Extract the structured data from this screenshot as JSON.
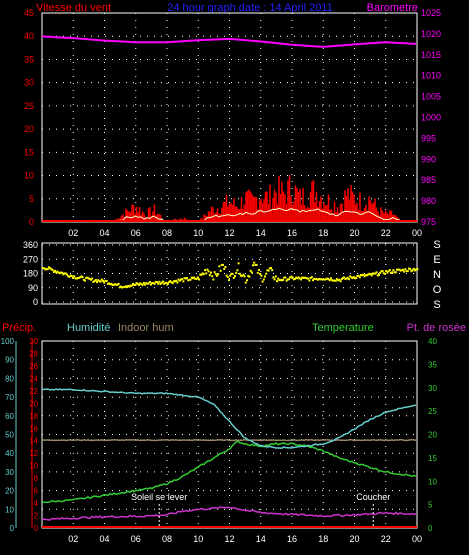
{
  "header": {
    "left_label": "Vitesse du vent",
    "title": "24 hour graph date : 14 April 2011",
    "right_label": "Barometre"
  },
  "colors": {
    "wind_label": "#ff0000",
    "title": "#2222ff",
    "baro_label": "#ff00ff",
    "wind_speed": "#ff0000",
    "wind_avg": "#ffffcc",
    "barometer": "#ff00ff",
    "direction": "#ffff00",
    "humidity": "#66cccc",
    "indoor_hum": "#998866",
    "temperature": "#33cc33",
    "dew_point": "#cc33cc",
    "precip": "#ff0000",
    "grid_dot": "#ffffff"
  },
  "x_ticks": [
    "02",
    "04",
    "06",
    "08",
    "10",
    "12",
    "14",
    "16",
    "18",
    "20",
    "22",
    "00"
  ],
  "chart_data": [
    {
      "type": "line",
      "name": "wind_and_barometer",
      "left_axis": {
        "ticks": [
          "0",
          "5",
          "10",
          "15",
          "20",
          "25",
          "30",
          "35",
          "40",
          "45"
        ],
        "ylim": [
          0,
          45
        ]
      },
      "right_axis": {
        "ticks": [
          "975",
          "980",
          "985",
          "990",
          "995",
          "1000",
          "1005",
          "1010",
          "1015",
          "1020",
          "1025"
        ],
        "ylim": [
          975,
          1025
        ]
      },
      "series": [
        {
          "name": "Barometre",
          "x_hours": [
            0,
            2,
            4,
            6,
            8,
            10,
            12,
            14,
            16,
            18,
            20,
            22,
            24
          ],
          "values": [
            1019.4,
            1019.0,
            1018.4,
            1018.0,
            1018.0,
            1018.5,
            1018.8,
            1018.2,
            1017.4,
            1016.9,
            1017.5,
            1018.0,
            1017.6
          ]
        },
        {
          "name": "Vitesse du vent",
          "x_hours": [
            0,
            3,
            4.5,
            5.2,
            6,
            6.6,
            7.2,
            8,
            9,
            10,
            10.8,
            11.5,
            12,
            12.5,
            13,
            13.5,
            14,
            14.5,
            15,
            15.5,
            16,
            16.5,
            17,
            17.5,
            18,
            18.5,
            19,
            19.5,
            20,
            20.5,
            21,
            21.5,
            22,
            22.5,
            23,
            24
          ],
          "values": [
            0,
            0,
            0,
            2,
            4,
            2,
            3,
            0,
            1,
            0,
            3,
            4,
            5,
            4,
            6,
            5,
            7,
            6,
            8,
            7,
            9,
            6,
            7,
            8,
            6,
            5,
            4,
            7,
            6,
            5,
            6,
            3,
            2,
            2,
            0,
            0
          ]
        }
      ]
    },
    {
      "type": "scatter",
      "name": "wind_direction",
      "axis": {
        "ticks": [
          "0",
          "90",
          "180",
          "270",
          "360"
        ],
        "ylim": [
          0,
          360
        ]
      },
      "side_letters": [
        "S",
        "E",
        "N",
        "O",
        "S"
      ],
      "series": [
        {
          "name": "direction",
          "x_hours": [
            0,
            1,
            2,
            3,
            4,
            5,
            6,
            7,
            8,
            9,
            10,
            10.5,
            11,
            11.5,
            12,
            12.5,
            13,
            13.5,
            14,
            14.5,
            15,
            16,
            17,
            18,
            19,
            20,
            21,
            22,
            23,
            24
          ],
          "values": [
            220,
            190,
            160,
            140,
            130,
            100,
            110,
            120,
            125,
            140,
            150,
            210,
            160,
            230,
            150,
            220,
            140,
            240,
            150,
            200,
            140,
            150,
            145,
            150,
            140,
            160,
            170,
            190,
            200,
            210
          ]
        }
      ]
    },
    {
      "type": "line",
      "name": "humidity_temperature",
      "labels": {
        "precip": "Précip.",
        "humidity": "Humidité",
        "indoor": "Indoor hum",
        "temperature": "Temperature",
        "dew": "Pt. de rosée"
      },
      "axis_humidity": {
        "ticks": [
          "0",
          "10",
          "20",
          "30",
          "40",
          "50",
          "60",
          "70",
          "80",
          "90",
          "100"
        ],
        "ylim": [
          0,
          100
        ]
      },
      "axis_precip": {
        "ticks": [
          "0",
          "2",
          "4",
          "6",
          "8",
          "10",
          "12",
          "14",
          "16",
          "18",
          "20",
          "22",
          "24",
          "26",
          "28",
          "30"
        ],
        "ylim": [
          0,
          30
        ]
      },
      "axis_temperature": {
        "ticks": [
          "0",
          "5",
          "10",
          "15",
          "20",
          "25",
          "30",
          "35",
          "40"
        ],
        "ylim": [
          0,
          40
        ]
      },
      "annotations": {
        "sunrise": "Soleil se lever",
        "sunset": "Coucher",
        "sunrise_hour": 7.5,
        "sunset_hour": 21.2
      },
      "series": [
        {
          "name": "Humidité",
          "x_hours": [
            0,
            2,
            4,
            6,
            8,
            9,
            10,
            11,
            12,
            13,
            14,
            15,
            16,
            17,
            18,
            19,
            20,
            21,
            22,
            23,
            24
          ],
          "values": [
            74,
            74,
            73,
            72,
            72,
            71,
            70,
            66,
            57,
            48,
            44,
            43,
            43,
            44,
            45,
            48,
            53,
            58,
            62,
            64,
            66
          ]
        },
        {
          "name": "Indoor hum",
          "x_hours": [
            0,
            4,
            8,
            12,
            16,
            20,
            24
          ],
          "values": [
            47,
            47,
            47,
            47,
            47,
            47,
            47
          ]
        },
        {
          "name": "Temperature",
          "x_hours": [
            0,
            2,
            4,
            6,
            7,
            8,
            9,
            10,
            11,
            12,
            12.5,
            13,
            14,
            15,
            16,
            17,
            18,
            19,
            20,
            21,
            22,
            23,
            24
          ],
          "values": [
            5.5,
            6,
            7,
            8,
            8.5,
            9.5,
            11,
            13,
            15,
            17,
            18.5,
            18,
            17.5,
            18,
            18,
            17.5,
            16.5,
            15,
            14,
            13,
            12,
            11.5,
            11
          ]
        },
        {
          "name": "Pt. de rosée",
          "x_hours": [
            0,
            2,
            4,
            6,
            8,
            9,
            10,
            11,
            12,
            13,
            14,
            16,
            18,
            20,
            22,
            24
          ],
          "values": [
            1.8,
            2.1,
            2.4,
            2.5,
            2.8,
            3.6,
            4.0,
            4.2,
            4.5,
            3.8,
            3.3,
            2.9,
            2.6,
            2.8,
            3.2,
            3.0
          ]
        }
      ]
    }
  ]
}
